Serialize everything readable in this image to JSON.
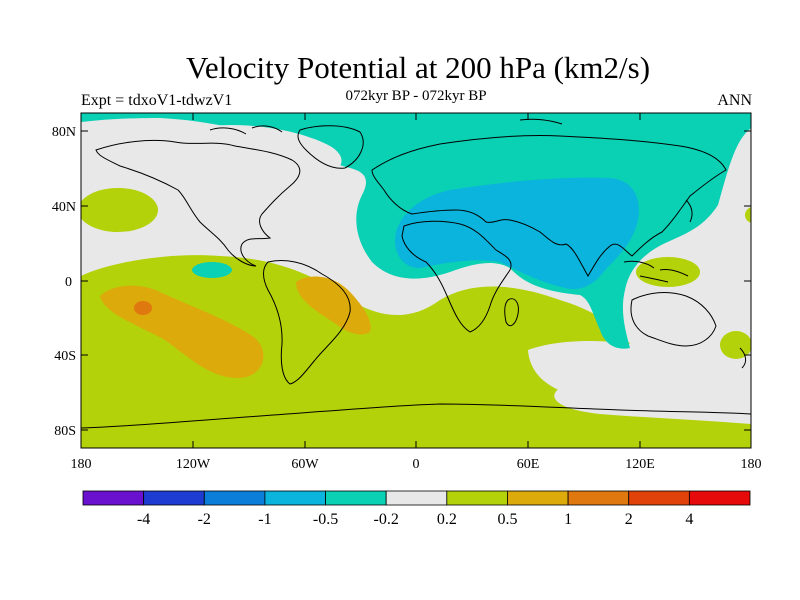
{
  "header": {
    "title": "Velocity Potential at 200 hPa (km2/s)",
    "subtitle": "072kyr BP - 072kyr BP",
    "experiment": "Expt = tdxoV1-tdwzV1",
    "season": "ANN"
  },
  "map": {
    "lat_ticks": [
      "80N",
      "40N",
      "0",
      "40S",
      "80S"
    ],
    "lon_ticks": [
      "180",
      "120W",
      "60W",
      "0",
      "60E",
      "120E",
      "180"
    ]
  },
  "legend": {
    "colors": [
      "#6a10cf",
      "#1e3cd2",
      "#0a7ed8",
      "#0ab4dc",
      "#0ad0b4",
      "#e8e8e8",
      "#b4d20a",
      "#dcaa0a",
      "#e07810",
      "#e0420a",
      "#e60a0a"
    ],
    "labels": [
      "-4",
      "-2",
      "-1",
      "-0.5",
      "-0.2",
      "0.2",
      "0.5",
      "1",
      "2",
      "4"
    ]
  }
}
